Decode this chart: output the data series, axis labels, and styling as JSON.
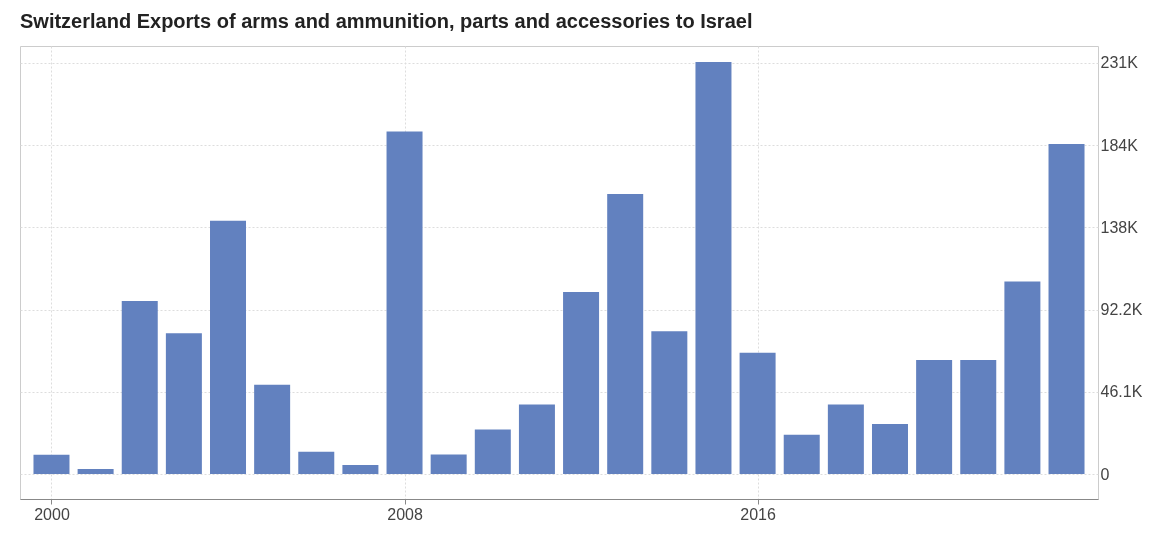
{
  "chart_data": {
    "type": "bar",
    "title": "Switzerland Exports of arms and ammunition, parts and accessories to Israel",
    "x": [
      2000,
      2001,
      2002,
      2003,
      2004,
      2005,
      2006,
      2007,
      2008,
      2009,
      2010,
      2011,
      2012,
      2013,
      2014,
      2015,
      2016,
      2017,
      2018,
      2019,
      2020,
      2021,
      2022,
      2023
    ],
    "values": [
      10800,
      2800,
      97000,
      79000,
      142000,
      50000,
      12500,
      5000,
      192000,
      11000,
      25000,
      39000,
      102000,
      157000,
      80000,
      231000,
      68000,
      22000,
      39000,
      28000,
      64000,
      64000,
      108000,
      185000
    ],
    "color": "#6281bf",
    "xlim": [
      1999.4,
      2023.6
    ],
    "xticks": [
      2000,
      2008,
      2016
    ],
    "ylim": [
      -14000,
      240000
    ],
    "yticks": [
      0,
      {
        "value": 46100,
        "label": "46.1K"
      },
      {
        "value": 92200,
        "label": "92.2K"
      },
      {
        "value": 138300,
        "label": "138K"
      },
      {
        "value": 184400,
        "label": "184K"
      },
      {
        "value": 230500,
        "label": "231K"
      }
    ],
    "grid": true
  }
}
